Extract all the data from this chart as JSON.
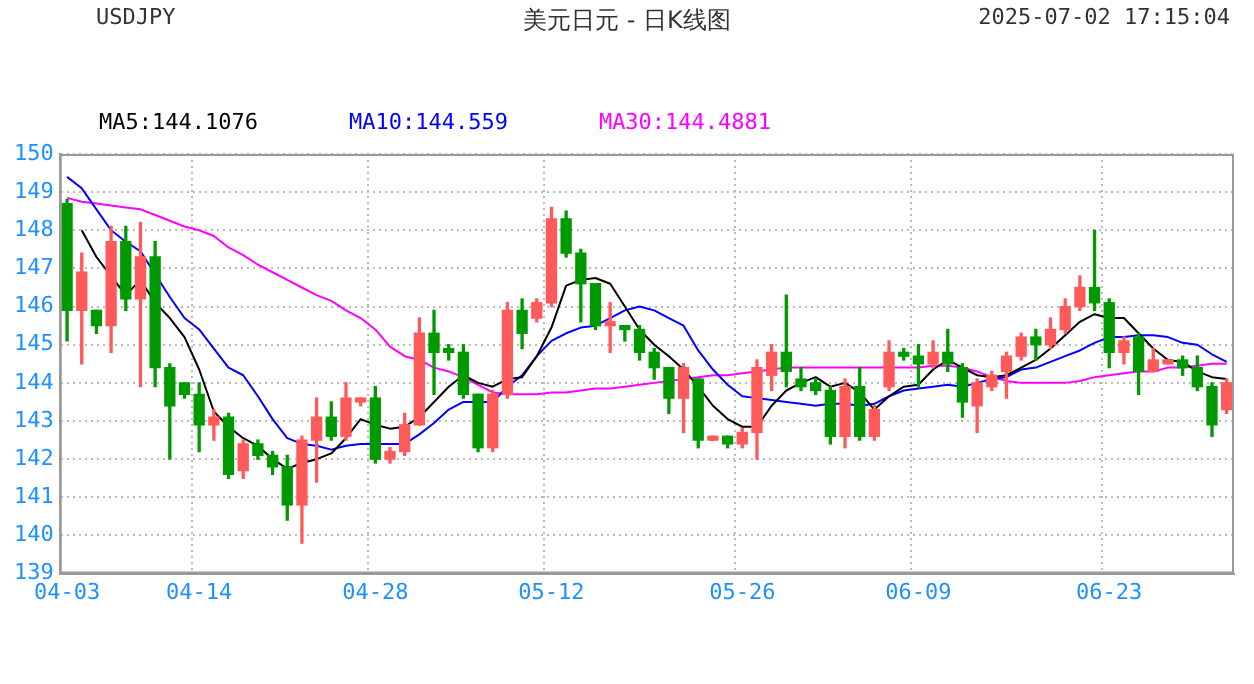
{
  "chart_data": {
    "type": "candlestick",
    "title": "美元日元 - 日K线图",
    "annotations": [
      "USDJPY",
      "2025-07-02 17:15:04"
    ],
    "categories": [
      "04-03",
      null,
      null,
      null,
      null,
      null,
      null,
      null,
      null,
      "04-14",
      null,
      null,
      null,
      null,
      null,
      null,
      null,
      null,
      null,
      null,
      null,
      "04-28",
      null,
      null,
      null,
      null,
      null,
      null,
      null,
      null,
      null,
      null,
      null,
      "05-12",
      null,
      null,
      null,
      null,
      null,
      null,
      null,
      null,
      null,
      null,
      null,
      null,
      "05-26",
      null,
      null,
      null,
      null,
      null,
      null,
      null,
      null,
      null,
      null,
      null,
      "06-09",
      null,
      null,
      null,
      null,
      null,
      null,
      null,
      null,
      null,
      null,
      null,
      null,
      "06-23",
      null,
      null,
      null,
      null,
      null,
      null,
      null,
      null
    ],
    "ohlc": [
      [
        148.7,
        148.8,
        145.1,
        145.9
      ],
      [
        145.9,
        147.4,
        144.5,
        146.9
      ],
      [
        145.9,
        145.9,
        145.3,
        145.5
      ],
      [
        145.5,
        148.1,
        144.8,
        147.7
      ],
      [
        147.7,
        148.1,
        145.9,
        146.2
      ],
      [
        146.2,
        148.2,
        143.9,
        147.3
      ],
      [
        147.3,
        147.7,
        143.9,
        144.4
      ],
      [
        144.4,
        144.5,
        142.0,
        143.4
      ],
      [
        144.0,
        144.0,
        143.6,
        143.7
      ],
      [
        143.7,
        144.0,
        142.2,
        142.9
      ],
      [
        142.9,
        143.3,
        142.5,
        143.1
      ],
      [
        143.1,
        143.2,
        141.5,
        141.6
      ],
      [
        141.7,
        142.5,
        141.5,
        142.4
      ],
      [
        142.4,
        142.5,
        142.0,
        142.1
      ],
      [
        142.1,
        142.2,
        141.6,
        141.8
      ],
      [
        141.8,
        142.1,
        140.4,
        140.8
      ],
      [
        140.8,
        142.6,
        139.8,
        142.5
      ],
      [
        142.5,
        143.6,
        141.4,
        143.1
      ],
      [
        143.1,
        143.5,
        142.5,
        142.6
      ],
      [
        142.6,
        144.0,
        142.5,
        143.6
      ],
      [
        143.5,
        143.6,
        143.4,
        143.6
      ],
      [
        143.6,
        143.9,
        141.9,
        142.0
      ],
      [
        142.0,
        142.3,
        141.9,
        142.2
      ],
      [
        142.2,
        143.2,
        142.1,
        142.9
      ],
      [
        142.9,
        145.7,
        142.9,
        145.3
      ],
      [
        145.3,
        145.9,
        143.7,
        144.8
      ],
      [
        144.9,
        145.0,
        144.6,
        144.8
      ],
      [
        144.8,
        145.0,
        143.6,
        143.7
      ],
      [
        143.7,
        143.7,
        142.2,
        142.3
      ],
      [
        142.3,
        143.8,
        142.2,
        143.7
      ],
      [
        143.7,
        146.1,
        143.6,
        145.9
      ],
      [
        145.9,
        146.2,
        144.9,
        145.3
      ],
      [
        145.7,
        146.2,
        145.6,
        146.1
      ],
      [
        146.1,
        148.6,
        146.0,
        148.3
      ],
      [
        148.3,
        148.5,
        147.3,
        147.4
      ],
      [
        147.4,
        147.5,
        145.6,
        146.6
      ],
      [
        146.6,
        146.6,
        145.4,
        145.5
      ],
      [
        145.5,
        146.1,
        144.8,
        145.6
      ],
      [
        145.5,
        145.5,
        145.1,
        145.4
      ],
      [
        145.4,
        145.5,
        144.6,
        144.8
      ],
      [
        144.8,
        144.9,
        144.1,
        144.4
      ],
      [
        144.4,
        144.4,
        143.2,
        143.6
      ],
      [
        143.6,
        144.5,
        142.7,
        144.4
      ],
      [
        144.1,
        144.1,
        142.3,
        142.5
      ],
      [
        142.5,
        142.6,
        142.5,
        142.6
      ],
      [
        142.6,
        142.6,
        142.3,
        142.4
      ],
      [
        142.4,
        142.8,
        142.3,
        142.7
      ],
      [
        142.7,
        144.6,
        142.0,
        144.4
      ],
      [
        144.2,
        145.0,
        143.8,
        144.8
      ],
      [
        144.8,
        146.3,
        143.9,
        144.3
      ],
      [
        144.1,
        144.4,
        143.8,
        143.9
      ],
      [
        144.0,
        144.1,
        143.7,
        143.8
      ],
      [
        143.8,
        143.9,
        142.4,
        142.6
      ],
      [
        142.6,
        144.1,
        142.3,
        143.9
      ],
      [
        143.9,
        144.4,
        142.5,
        142.6
      ],
      [
        142.6,
        143.4,
        142.5,
        143.3
      ],
      [
        143.9,
        145.1,
        143.8,
        144.8
      ],
      [
        144.8,
        144.9,
        144.6,
        144.7
      ],
      [
        144.7,
        145.0,
        143.9,
        144.5
      ],
      [
        144.5,
        145.1,
        144.4,
        144.8
      ],
      [
        144.8,
        145.4,
        144.3,
        144.5
      ],
      [
        144.4,
        144.5,
        143.1,
        143.5
      ],
      [
        143.4,
        144.1,
        142.7,
        144.0
      ],
      [
        143.9,
        144.3,
        143.8,
        144.2
      ],
      [
        144.3,
        144.8,
        143.6,
        144.7
      ],
      [
        144.7,
        145.3,
        144.6,
        145.2
      ],
      [
        145.2,
        145.4,
        144.6,
        145.0
      ],
      [
        145.0,
        145.7,
        144.9,
        145.4
      ],
      [
        145.4,
        146.2,
        145.3,
        146.0
      ],
      [
        146.0,
        146.8,
        145.9,
        146.5
      ],
      [
        146.5,
        148.0,
        145.9,
        146.1
      ],
      [
        146.1,
        146.2,
        144.4,
        144.8
      ],
      [
        144.8,
        145.2,
        144.5,
        145.1
      ],
      [
        145.2,
        145.3,
        143.7,
        144.3
      ],
      [
        144.3,
        144.9,
        144.3,
        144.6
      ],
      [
        144.5,
        144.6,
        144.5,
        144.6
      ],
      [
        144.6,
        144.7,
        144.2,
        144.4
      ],
      [
        144.4,
        144.7,
        143.8,
        143.9
      ],
      [
        143.9,
        144.0,
        142.6,
        142.9
      ],
      [
        143.3,
        144.1,
        143.2,
        144.0
      ]
    ],
    "colors": [
      "#009900",
      "#ff5a5a",
      "#009900",
      "#ff5a5a",
      "#009900",
      "#ff5a5a",
      "#009900",
      "#009900",
      "#009900",
      "#009900",
      "#ff5a5a",
      "#009900",
      "#ff5a5a",
      "#009900",
      "#009900",
      "#009900",
      "#ff5a5a",
      "#ff5a5a",
      "#009900",
      "#ff5a5a",
      "#ff5a5a",
      "#009900",
      "#ff5a5a",
      "#ff5a5a",
      "#ff5a5a",
      "#009900",
      "#009900",
      "#009900",
      "#009900",
      "#ff5a5a",
      "#ff5a5a",
      "#009900",
      "#ff5a5a",
      "#ff5a5a",
      "#009900",
      "#009900",
      "#009900",
      "#ff5a5a",
      "#009900",
      "#009900",
      "#009900",
      "#009900",
      "#ff5a5a",
      "#009900",
      "#ff5a5a",
      "#009900",
      "#ff5a5a",
      "#ff5a5a",
      "#ff5a5a",
      "#009900",
      "#009900",
      "#009900",
      "#009900",
      "#ff5a5a",
      "#009900",
      "#ff5a5a",
      "#ff5a5a",
      "#009900",
      "#009900",
      "#ff5a5a",
      "#009900",
      "#009900",
      "#ff5a5a",
      "#ff5a5a",
      "#ff5a5a",
      "#ff5a5a",
      "#009900",
      "#ff5a5a",
      "#ff5a5a",
      "#ff5a5a",
      "#009900",
      "#009900",
      "#ff5a5a",
      "#009900",
      "#ff5a5a",
      "#ff5a5a",
      "#009900",
      "#009900",
      "#009900",
      "#ff5a5a"
    ],
    "series": [
      {
        "name": "MA5:144.1076",
        "type": "line",
        "color": "#000000",
        "values": [
          null,
          148.0,
          147.3,
          146.8,
          146.3,
          146.7,
          146.1,
          145.7,
          145.2,
          144.35,
          143.25,
          142.85,
          142.55,
          142.35,
          142.0,
          141.75,
          141.9,
          142.0,
          142.15,
          142.55,
          143.05,
          142.9,
          142.8,
          142.85,
          143.1,
          143.5,
          143.9,
          144.2,
          144.0,
          143.9,
          144.1,
          144.15,
          144.7,
          145.45,
          146.55,
          146.7,
          146.75,
          146.6,
          146.0,
          145.4,
          145.0,
          144.7,
          144.35,
          143.9,
          143.4,
          143.05,
          142.85,
          142.85,
          143.4,
          143.8,
          144.0,
          144.15,
          143.9,
          144.0,
          143.75,
          143.3,
          143.65,
          143.9,
          143.95,
          144.35,
          144.6,
          144.4,
          144.2,
          144.15,
          144.2,
          144.4,
          144.6,
          144.9,
          145.25,
          145.6,
          145.8,
          145.7,
          145.7,
          145.3,
          144.9,
          144.6,
          144.55,
          144.3,
          144.15,
          144.1
        ]
      },
      {
        "name": "MA10:144.559",
        "type": "line",
        "color": "#0000ff",
        "values": [
          149.4,
          149.1,
          148.55,
          148.0,
          147.7,
          147.45,
          null,
          146.25,
          145.7,
          145.4,
          144.9,
          144.4,
          144.2,
          143.65,
          143.05,
          142.55,
          142.4,
          142.35,
          142.25,
          142.35,
          142.4,
          142.4,
          142.4,
          142.4,
          142.65,
          142.95,
          143.3,
          143.5,
          143.5,
          143.5,
          143.9,
          144.2,
          144.7,
          145.1,
          145.3,
          145.45,
          145.5,
          145.7,
          145.9,
          146.0,
          145.9,
          145.7,
          145.5,
          144.85,
          144.35,
          143.95,
          143.65,
          143.6,
          143.55,
          143.5,
          143.45,
          143.4,
          143.45,
          143.45,
          143.4,
          143.45,
          143.65,
          143.8,
          143.85,
          143.9,
          143.95,
          143.9,
          144.0,
          144.1,
          144.15,
          144.35,
          144.4,
          144.55,
          144.7,
          144.85,
          145.05,
          145.2,
          145.2,
          145.25,
          145.25,
          145.2,
          145.05,
          145.0,
          144.75,
          144.55
        ]
      },
      {
        "name": "MA30:144.4881",
        "type": "line",
        "color": "#ff00ff",
        "values": [
          148.85,
          148.75,
          148.7,
          148.65,
          148.6,
          148.55,
          148.4,
          148.25,
          148.1,
          148.0,
          147.85,
          147.55,
          147.35,
          147.1,
          146.9,
          146.7,
          146.5,
          146.3,
          146.15,
          145.9,
          145.7,
          145.4,
          144.95,
          144.7,
          144.6,
          144.4,
          144.3,
          144.15,
          143.95,
          143.75,
          143.7,
          143.7,
          143.7,
          143.75,
          143.75,
          143.8,
          143.85,
          143.85,
          143.9,
          143.95,
          144.0,
          144.05,
          144.1,
          144.15,
          144.2,
          144.2,
          144.25,
          144.3,
          144.35,
          144.4,
          144.4,
          144.4,
          144.4,
          144.4,
          144.4,
          144.4,
          144.4,
          144.4,
          144.4,
          144.45,
          144.45,
          144.4,
          144.3,
          144.15,
          144.05,
          144.0,
          144.0,
          144.0,
          144.0,
          144.05,
          144.15,
          144.2,
          144.25,
          144.3,
          144.3,
          144.4,
          144.4,
          144.45,
          144.5,
          144.5
        ]
      }
    ],
    "ylim": [
      139,
      150
    ],
    "yticks": [
      139,
      140,
      141,
      142,
      143,
      144,
      145,
      146,
      147,
      148,
      149,
      150
    ],
    "grid": true,
    "legend": "top left"
  }
}
